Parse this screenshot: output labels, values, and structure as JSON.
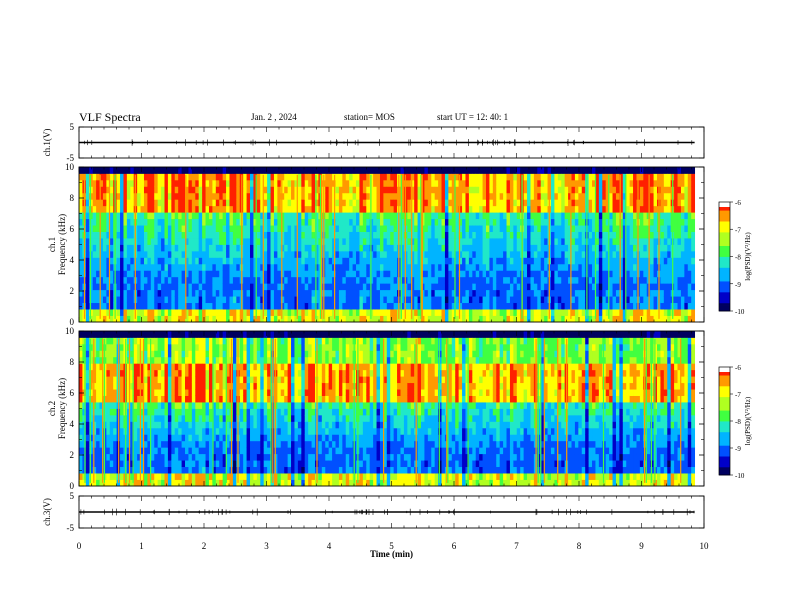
{
  "header": {
    "title": "VLF Spectra",
    "date": "Jan. 2 , 2024",
    "station": "station= MOS",
    "start": "start UT =  12: 40: 1"
  },
  "colorbar": {
    "label": "log(PSD)(V²/Hz)",
    "ticks": [
      "-6",
      "-7",
      "-8",
      "-9",
      "-10"
    ],
    "colors": [
      "#000060",
      "#0000c8",
      "#0050ff",
      "#00b4ff",
      "#20e8c8",
      "#40ff40",
      "#b0ff20",
      "#ffff00",
      "#ff9900",
      "#ff2000",
      "#ffffff"
    ]
  },
  "chart_data": [
    {
      "type": "line",
      "panel": "ch.1 waveform",
      "ylabel": "ch.1(V)",
      "ylim": [
        -5,
        5
      ],
      "yticks": [
        "5",
        "-5"
      ],
      "xlim": [
        0,
        10
      ],
      "series": [
        {
          "x": [
            0,
            9.85
          ],
          "values": [
            0,
            0
          ]
        }
      ]
    },
    {
      "type": "heatmap",
      "panel": "ch.1 spectrogram",
      "ylabel": "ch.1 Frequency (kHz)",
      "ylim": [
        0,
        10
      ],
      "yticks": [
        "10",
        "8",
        "6",
        "4",
        "2",
        "0"
      ],
      "xlim": [
        0,
        10
      ],
      "data_xmax": 9.85,
      "zlim": [
        -10,
        -6
      ],
      "intense_band_khz": [
        7,
        9.5
      ],
      "low_band_khz": [
        0,
        1
      ]
    },
    {
      "type": "heatmap",
      "panel": "ch.2 spectrogram",
      "ylabel": "ch.2 Frequency (kHz)",
      "ylim": [
        0,
        10
      ],
      "yticks": [
        "10",
        "8",
        "6",
        "4",
        "2",
        "0"
      ],
      "xlim": [
        0,
        10
      ],
      "data_xmax": 9.85,
      "zlim": [
        -10,
        -6
      ],
      "intense_band_khz": [
        5.5,
        8
      ],
      "low_band_khz": [
        0,
        1
      ]
    },
    {
      "type": "line",
      "panel": "ch.3 waveform",
      "ylabel": "ch.3(V)",
      "ylim": [
        -5,
        5
      ],
      "yticks": [
        "5",
        "-5"
      ],
      "xlim": [
        0,
        10
      ],
      "series": [
        {
          "x": [
            0,
            9.85
          ],
          "values": [
            0,
            0
          ]
        }
      ]
    }
  ],
  "xaxis": {
    "label": "Time (min)",
    "ticks": [
      "0",
      "1",
      "2",
      "3",
      "4",
      "5",
      "6",
      "7",
      "8",
      "9",
      "10"
    ]
  }
}
